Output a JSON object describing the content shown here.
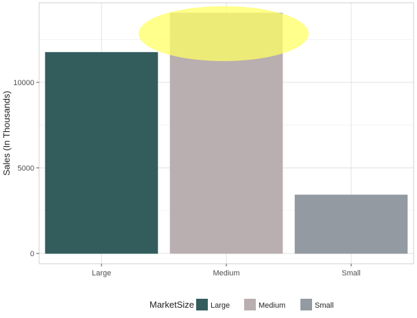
{
  "chart_data": {
    "type": "bar",
    "categories": [
      "Large",
      "Medium",
      "Small"
    ],
    "values": [
      11750,
      14050,
      3420
    ],
    "xlabel": "",
    "ylabel": "Sales (In Thousands)",
    "ylim": [
      -600,
      14650
    ],
    "yticks": [
      0,
      5000,
      10000
    ],
    "grid": true,
    "legend": {
      "title": "MarketSize",
      "position": "bottom",
      "entries": [
        "Large",
        "Medium",
        "Small"
      ]
    },
    "colors": {
      "Large": "#335c5d",
      "Medium": "#b9aeb0",
      "Small": "#939aa1",
      "highlight": "#ffff66"
    },
    "annotation": {
      "type": "highlight-ellipse",
      "category": "Medium"
    }
  }
}
